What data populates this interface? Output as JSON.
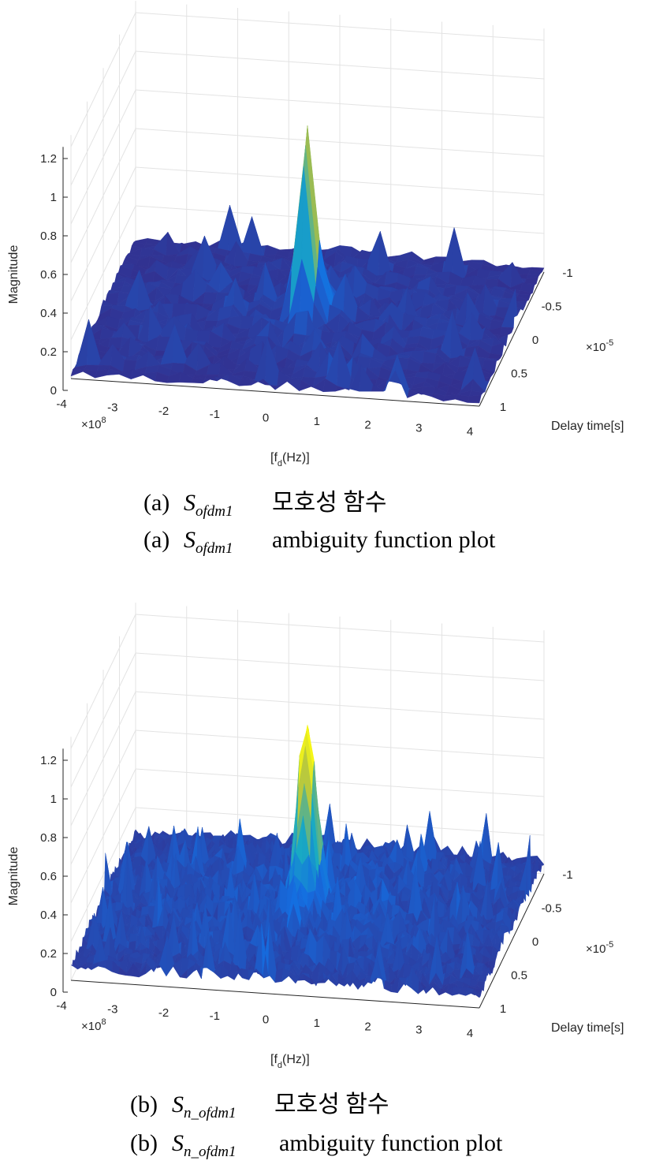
{
  "chart_data": [
    {
      "type": "surface",
      "panel": "a",
      "zlabel": "Magnitude",
      "xlabel": "[f_d(Hz)]",
      "xlabel_main": "[f",
      "xlabel_sub": "d",
      "xlabel_end": "(Hz)]",
      "ylabel": "Delay time[s]",
      "x_ticks": [
        "-4",
        "-3",
        "-2",
        "-1",
        "0",
        "1",
        "2",
        "3",
        "4"
      ],
      "x_exponent": "×10",
      "x_exponent_power": "8",
      "y_ticks": [
        "-1",
        "-0.5",
        "0",
        "0.5",
        "1"
      ],
      "y_exponent": "×10",
      "y_exponent_power": "-5",
      "z_ticks": [
        "0",
        "0.2",
        "0.4",
        "0.6",
        "0.8",
        "1",
        "1.2"
      ],
      "xlim": [
        -400000000.0,
        400000000.0
      ],
      "ylim": [
        -1e-05,
        1e-05
      ],
      "zlim": [
        0,
        1.2
      ],
      "peak": {
        "x": 0,
        "y": 0,
        "z": 1.0
      },
      "colormap": "parula",
      "surface_style": "smooth with scattered sidelobes up to ~0.35",
      "grid": true,
      "caption_korean": {
        "label": "(a)",
        "symbol": "S",
        "subscript": "ofdm1",
        "text": "모호성 함수"
      },
      "caption_english": {
        "label": "(a)",
        "symbol": "S",
        "subscript": "ofdm1",
        "text": "ambiguity function plot"
      }
    },
    {
      "type": "surface",
      "panel": "b",
      "zlabel": "Magnitude",
      "xlabel": "[f_d(Hz)]",
      "xlabel_main": "[f",
      "xlabel_sub": "d",
      "xlabel_end": "(Hz)]",
      "ylabel": "Delay time[s]",
      "x_ticks": [
        "-4",
        "-3",
        "-2",
        "-1",
        "0",
        "1",
        "2",
        "3",
        "4"
      ],
      "x_exponent": "×10",
      "x_exponent_power": "8",
      "y_ticks": [
        "-1",
        "-0.5",
        "0",
        "0.5",
        "1"
      ],
      "y_exponent": "×10",
      "y_exponent_power": "-5",
      "z_ticks": [
        "0",
        "0.2",
        "0.4",
        "0.6",
        "0.8",
        "1",
        "1.2"
      ],
      "xlim": [
        -400000000.0,
        400000000.0
      ],
      "ylim": [
        -1e-05,
        1e-05
      ],
      "zlim": [
        0,
        1.2
      ],
      "peak": {
        "x": 0,
        "y": 0,
        "z": 1.0
      },
      "colormap": "parula",
      "surface_style": "dense noisy floor up to ~0.35",
      "grid": true,
      "caption_korean": {
        "label": "(b)",
        "symbol": "S",
        "subscript": "n_ofdm1",
        "text": "모호성 함수"
      },
      "caption_english": {
        "label": "(b)",
        "symbol": "S",
        "subscript": "n_ofdm1",
        "text": "ambiguity function plot"
      }
    }
  ]
}
